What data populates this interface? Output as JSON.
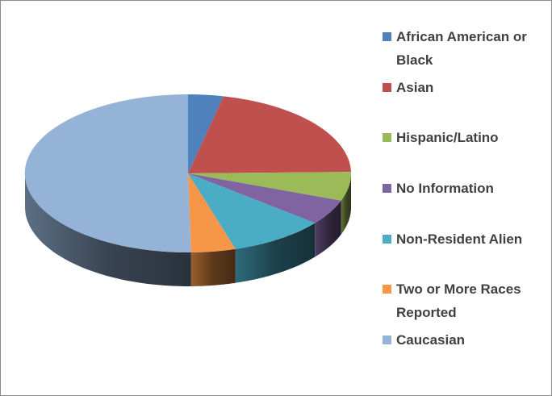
{
  "chart_data": {
    "type": "pie",
    "three_d": true,
    "legend_position": "right",
    "slices": [
      {
        "label": "African American or Black",
        "value": 3.5,
        "color": "#4F81BD"
      },
      {
        "label": "Asian",
        "value": 21.2,
        "color": "#C0504D"
      },
      {
        "label": "Hispanic/Latino",
        "value": 5.9,
        "color": "#9BBB59"
      },
      {
        "label": "No Information",
        "value": 5.2,
        "color": "#8064A2"
      },
      {
        "label": "Non-Resident Alien",
        "value": 9.5,
        "color": "#4BACC6"
      },
      {
        "label": "Two or More Races Reported",
        "value": 4.4,
        "color": "#F79646"
      },
      {
        "label": "Caucasian",
        "value": 50.3,
        "color": "#95B3D7"
      }
    ]
  }
}
